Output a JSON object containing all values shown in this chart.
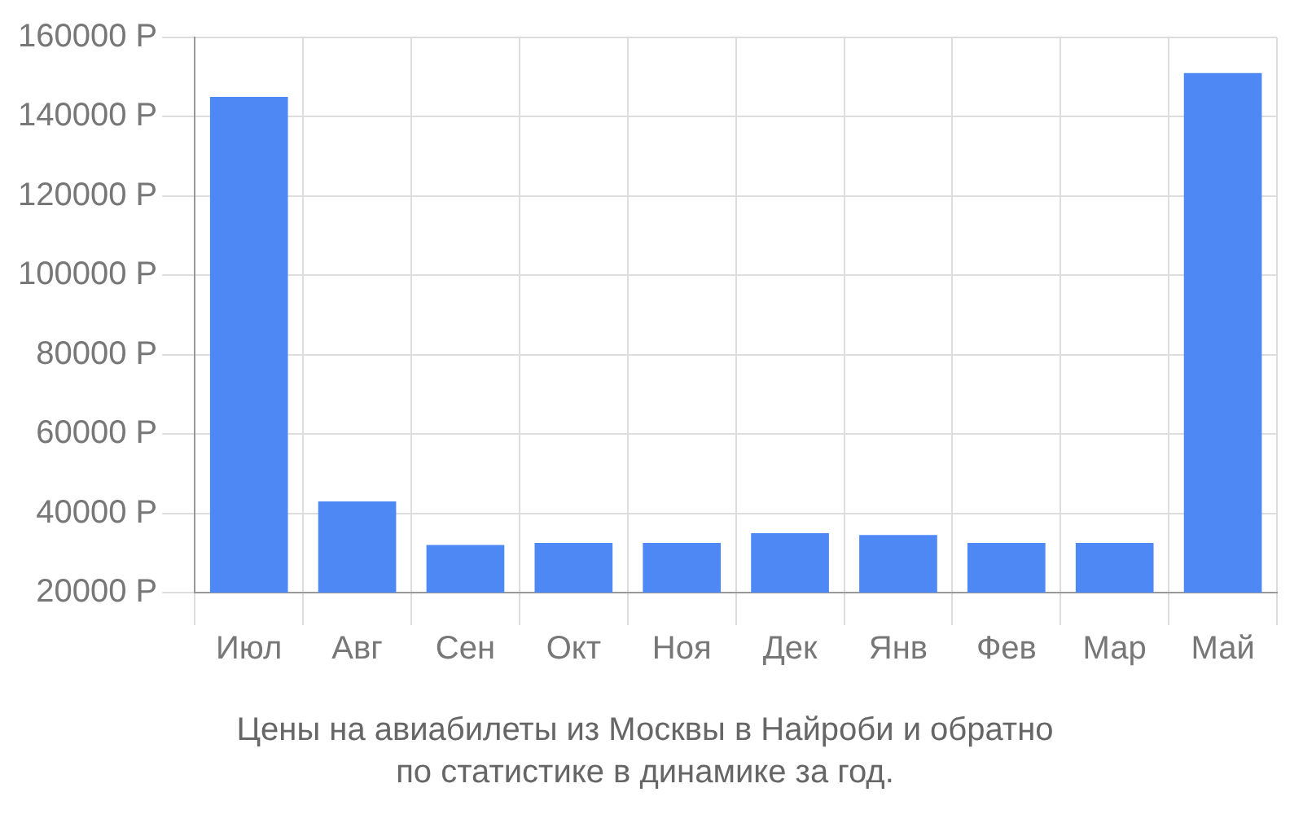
{
  "chart_data": {
    "type": "bar",
    "title": "Цены на авиабилеты из Москвы в Найроби и обратно\nпо статистике в динамике за год.",
    "categories": [
      "Июл",
      "Авг",
      "Сен",
      "Окт",
      "Ноя",
      "Дек",
      "Янв",
      "Фев",
      "Мар",
      "Май"
    ],
    "values": [
      145000,
      43000,
      32000,
      32500,
      32500,
      35000,
      34500,
      32500,
      32500,
      151000
    ],
    "color": "#4e88f5",
    "ylim": [
      20000,
      160000
    ],
    "yticks": [
      {
        "value": 20000,
        "label": "20000 Р"
      },
      {
        "value": 40000,
        "label": "40000 Р"
      },
      {
        "value": 60000,
        "label": "60000 Р"
      },
      {
        "value": 80000,
        "label": "80000 Р"
      },
      {
        "value": 100000,
        "label": "100000 Р"
      },
      {
        "value": 120000,
        "label": "120000 Р"
      },
      {
        "value": 140000,
        "label": "140000 Р"
      },
      {
        "value": 160000,
        "label": "160000 Р"
      }
    ],
    "grid": true
  }
}
